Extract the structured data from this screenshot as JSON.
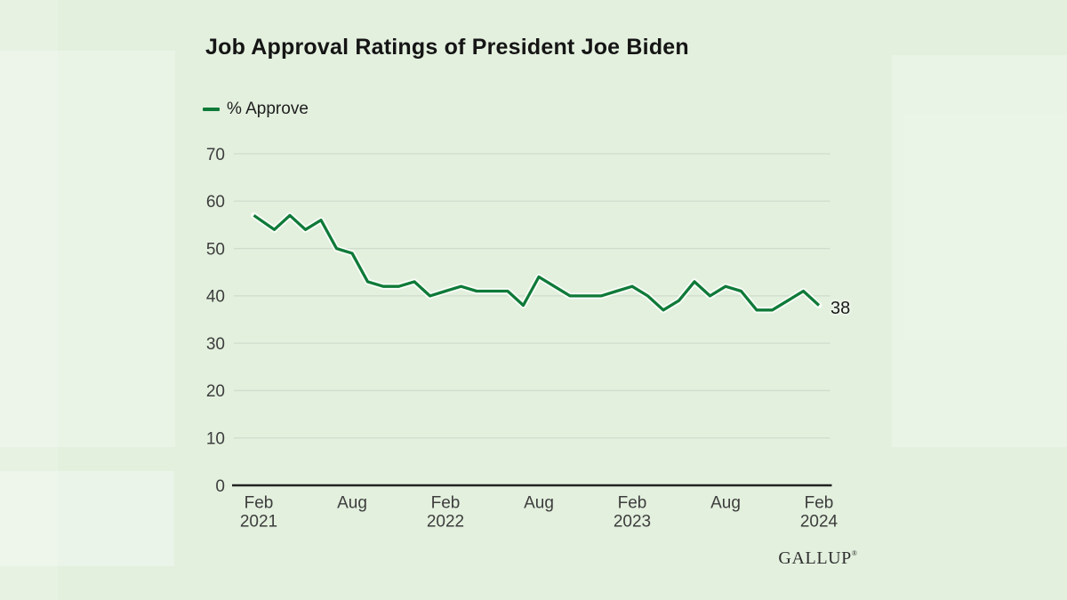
{
  "page": {
    "title": "Job Approval Ratings of President Joe Biden"
  },
  "legend": {
    "label": "% Approve"
  },
  "end_label": "38",
  "brand": {
    "name": "GALLUP",
    "mark": "®"
  },
  "colors": {
    "background": "#e3f0de",
    "line": "#0f7a39",
    "line_halo": "rgba(253,255,252,0.88)",
    "grid": "#d0dccc",
    "axis": "#222222",
    "tick_text": "#3d3d3d",
    "title_text": "#151515"
  },
  "chart_data": {
    "type": "line",
    "title": "Job Approval Ratings of President Joe Biden",
    "legend_entries": [
      "% Approve"
    ],
    "legend_position": "top-left",
    "grid": "horizontal-only",
    "x_start": "Feb 2021",
    "x_end": "Feb 2024",
    "x_step": "monthly",
    "x_tick_labels": [
      {
        "index": 0,
        "line1": "Feb",
        "line2": "2021"
      },
      {
        "index": 6,
        "line1": "Aug",
        "line2": ""
      },
      {
        "index": 12,
        "line1": "Feb",
        "line2": "2022"
      },
      {
        "index": 18,
        "line1": "Aug",
        "line2": ""
      },
      {
        "index": 24,
        "line1": "Feb",
        "line2": "2023"
      },
      {
        "index": 30,
        "line1": "Aug",
        "line2": ""
      },
      {
        "index": 36,
        "line1": "Feb",
        "line2": "2024"
      }
    ],
    "y_ticks": [
      0,
      10,
      20,
      30,
      40,
      50,
      60,
      70
    ],
    "ylim": [
      0,
      70
    ],
    "series": [
      {
        "name": "% Approve",
        "color": "#0f7a39",
        "values": [
          57,
          54,
          57,
          54,
          56,
          50,
          49,
          43,
          42,
          42,
          43,
          40,
          41,
          42,
          41,
          41,
          41,
          38,
          44,
          42,
          40,
          40,
          40,
          41,
          42,
          40,
          37,
          39,
          43,
          40,
          42,
          41,
          37,
          37,
          39,
          41,
          38
        ],
        "last_value_label": "38"
      }
    ]
  }
}
